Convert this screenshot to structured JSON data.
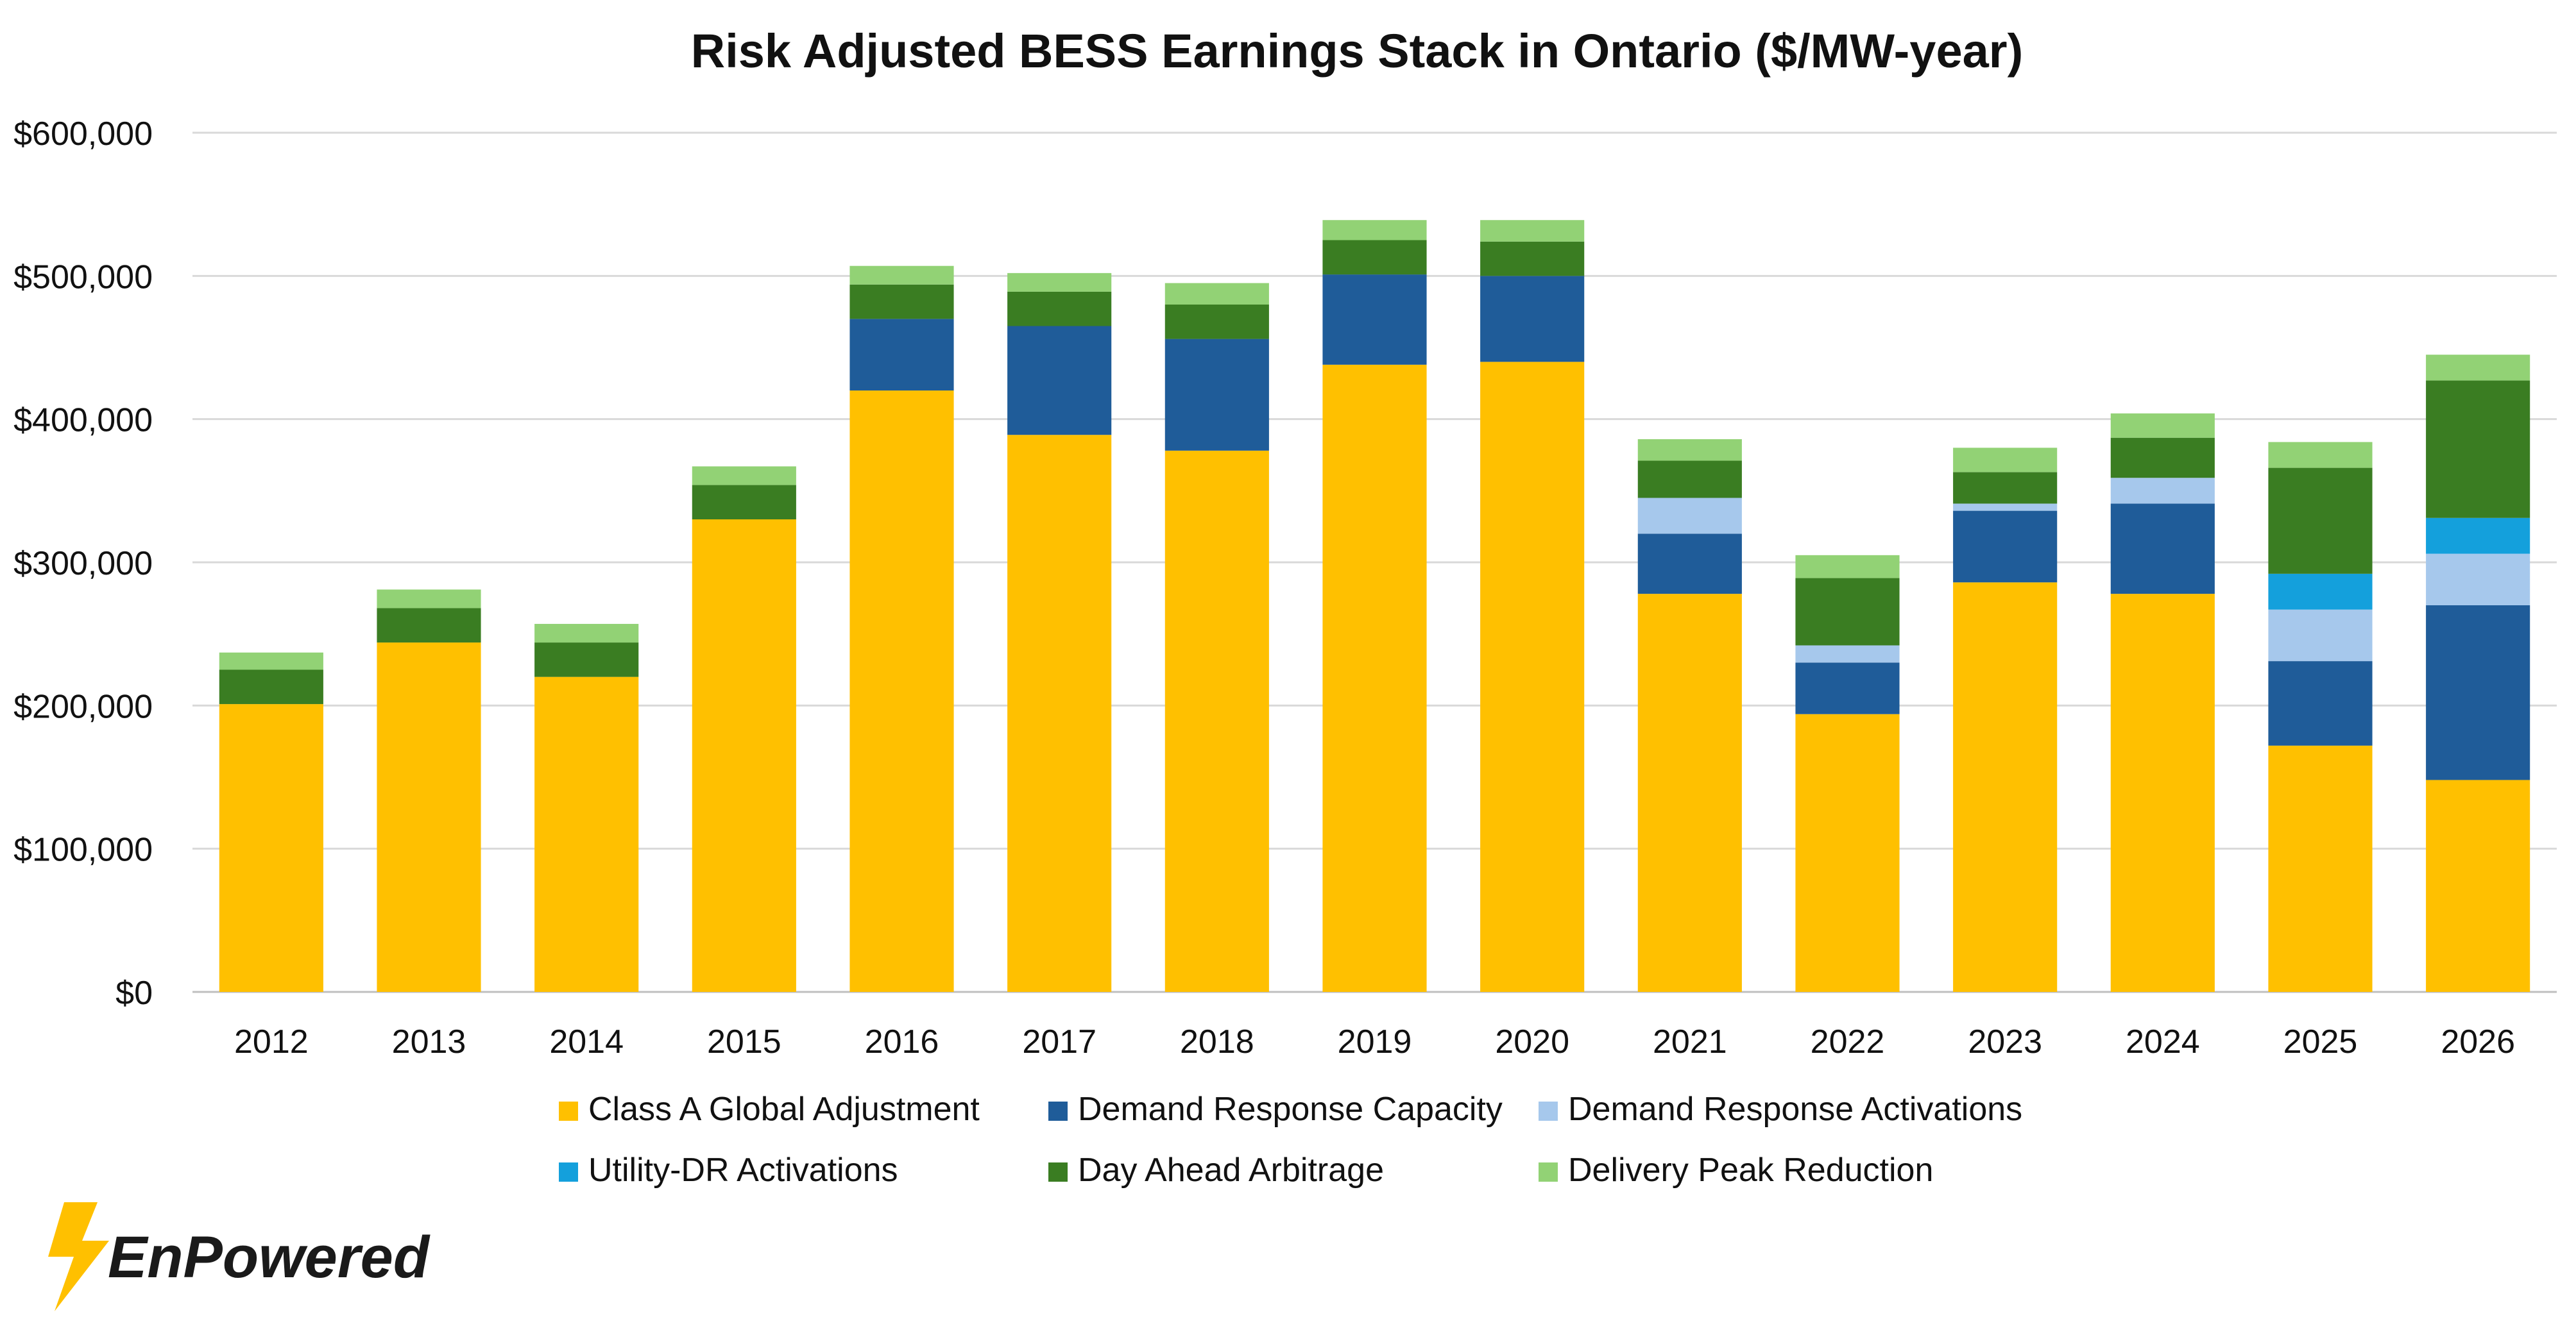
{
  "chart_data": {
    "type": "bar",
    "stacked": true,
    "title": "Risk Adjusted BESS Earnings Stack in Ontario ($/MW-year)",
    "xlabel": "",
    "ylabel": "",
    "ylim": [
      0,
      600000
    ],
    "yticks": [
      0,
      100000,
      200000,
      300000,
      400000,
      500000,
      600000
    ],
    "ytick_labels": [
      "$0",
      "$100,000",
      "$200,000",
      "$300,000",
      "$400,000",
      "$500,000",
      "$600,000"
    ],
    "grid": true,
    "legend_position": "bottom",
    "categories": [
      "2012",
      "2013",
      "2014",
      "2015",
      "2016",
      "2017",
      "2018",
      "2019",
      "2020",
      "2021",
      "2022",
      "2023",
      "2024",
      "2025",
      "2026"
    ],
    "series": [
      {
        "name": "Class A Global Adjustment",
        "color": "#FFC000",
        "values": [
          201000,
          244000,
          220000,
          330000,
          420000,
          389000,
          378000,
          438000,
          440000,
          278000,
          194000,
          286000,
          278000,
          172000,
          148000
        ]
      },
      {
        "name": "Demand Response Capacity",
        "color": "#1F5C99",
        "values": [
          0,
          0,
          0,
          0,
          50000,
          76000,
          78000,
          63000,
          60000,
          42000,
          36000,
          50000,
          63000,
          59000,
          122000
        ]
      },
      {
        "name": "Demand Response Activations",
        "color": "#A6C8EC",
        "values": [
          0,
          0,
          0,
          0,
          0,
          0,
          0,
          0,
          0,
          25000,
          12000,
          5000,
          18000,
          36000,
          36000
        ]
      },
      {
        "name": "Utility-DR Activations",
        "color": "#14A0DC",
        "values": [
          0,
          0,
          0,
          0,
          0,
          0,
          0,
          0,
          0,
          0,
          0,
          0,
          0,
          25000,
          25000
        ]
      },
      {
        "name": "Day Ahead Arbitrage",
        "color": "#3A7D22",
        "values": [
          24000,
          24000,
          24000,
          24000,
          24000,
          24000,
          24000,
          24000,
          24000,
          26000,
          47000,
          22000,
          28000,
          74000,
          96000
        ]
      },
      {
        "name": "Delivery Peak Reduction",
        "color": "#92D275",
        "values": [
          12000,
          13000,
          13000,
          13000,
          13000,
          13000,
          15000,
          14000,
          15000,
          15000,
          16000,
          17000,
          17000,
          18000,
          18000
        ]
      }
    ]
  },
  "logo": {
    "text": "EnPowered"
  }
}
